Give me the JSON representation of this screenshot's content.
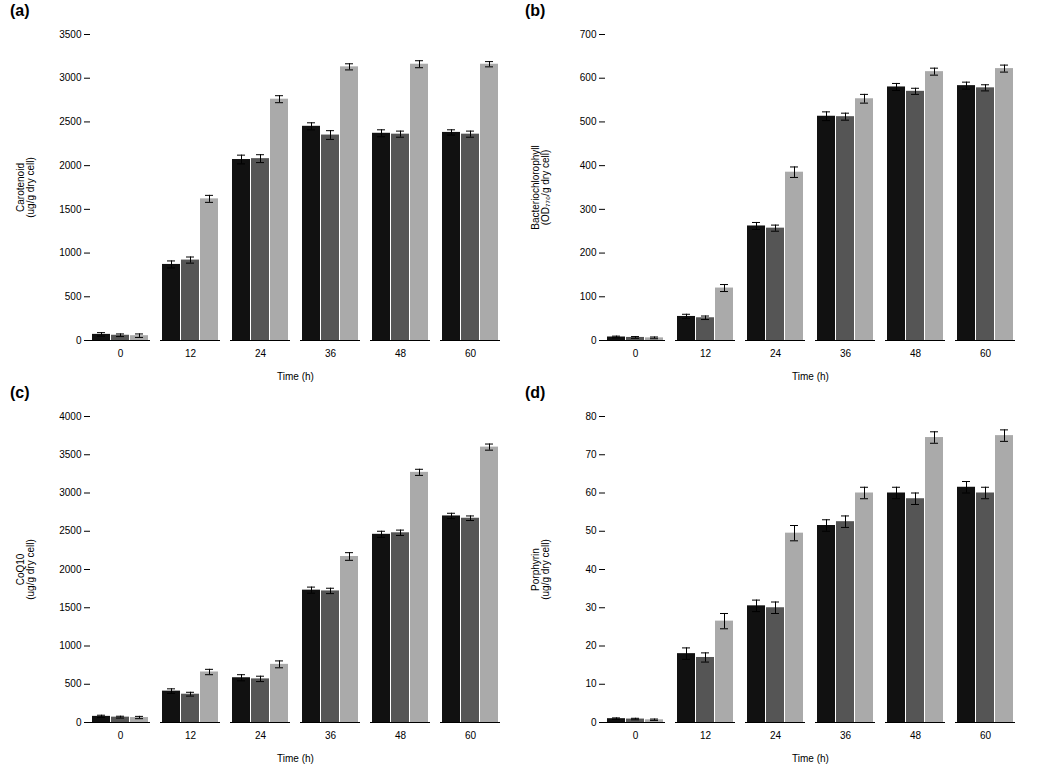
{
  "chart_data": [
    {
      "type": "bar",
      "title": "(a)",
      "xlabel": "Time (h)",
      "ylabel": "Carotenoid\n(ug/g dry cell)",
      "categories": [
        "0",
        "12",
        "24",
        "36",
        "48",
        "60"
      ],
      "ylim": [
        0,
        3500
      ],
      "yticks": [
        0,
        500,
        1000,
        1500,
        2000,
        2500,
        3000,
        3500
      ],
      "grid": false,
      "series": [
        {
          "color": "#111111",
          "values": [
            70,
            870,
            2070,
            2450,
            2370,
            2380
          ],
          "errors": [
            20,
            40,
            50,
            40,
            40,
            30
          ]
        },
        {
          "color": "#555555",
          "values": [
            60,
            920,
            2080,
            2350,
            2360,
            2360
          ],
          "errors": [
            15,
            35,
            45,
            50,
            35,
            35
          ]
        },
        {
          "color": "#aaaaaa",
          "values": [
            55,
            1620,
            2760,
            3130,
            3160,
            3160
          ],
          "errors": [
            20,
            40,
            40,
            35,
            40,
            30
          ]
        }
      ]
    },
    {
      "type": "bar",
      "title": "(b)",
      "xlabel": "Time (h)",
      "ylabel": "Bacteriochlorophyll\n(OD₇₇₀/g dry cell)",
      "categories": [
        "0",
        "12",
        "24",
        "36",
        "48",
        "60"
      ],
      "ylim": [
        0,
        700
      ],
      "yticks": [
        0,
        100,
        200,
        300,
        400,
        500,
        600,
        700
      ],
      "grid": false,
      "series": [
        {
          "color": "#111111",
          "values": [
            8,
            55,
            262,
            513,
            580,
            583
          ],
          "errors": [
            2,
            5,
            8,
            10,
            8,
            8
          ]
        },
        {
          "color": "#555555",
          "values": [
            7,
            52,
            257,
            512,
            570,
            578
          ],
          "errors": [
            2,
            4,
            7,
            8,
            7,
            7
          ]
        },
        {
          "color": "#aaaaaa",
          "values": [
            6,
            120,
            385,
            553,
            615,
            622
          ],
          "errors": [
            2,
            8,
            12,
            10,
            8,
            8
          ]
        }
      ]
    },
    {
      "type": "bar",
      "title": "(c)",
      "xlabel": "Time (h)",
      "ylabel": "CoQ10\n(ug/g dry cell)",
      "categories": [
        "0",
        "12",
        "24",
        "36",
        "48",
        "60"
      ],
      "ylim": [
        0,
        4000
      ],
      "yticks": [
        0,
        500,
        1000,
        1500,
        2000,
        2500,
        3000,
        3500,
        4000
      ],
      "grid": false,
      "series": [
        {
          "color": "#111111",
          "values": [
            80,
            410,
            585,
            1730,
            2460,
            2700
          ],
          "errors": [
            15,
            30,
            40,
            40,
            40,
            35
          ]
        },
        {
          "color": "#555555",
          "values": [
            70,
            370,
            570,
            1720,
            2480,
            2670
          ],
          "errors": [
            12,
            25,
            35,
            35,
            35,
            30
          ]
        },
        {
          "color": "#aaaaaa",
          "values": [
            65,
            660,
            760,
            2170,
            3270,
            3600
          ],
          "errors": [
            15,
            35,
            45,
            50,
            40,
            40
          ]
        }
      ]
    },
    {
      "type": "bar",
      "title": "(d)",
      "xlabel": "Time (h)",
      "ylabel": "Porphyrin\n(ug/g dry cell)",
      "categories": [
        "0",
        "12",
        "24",
        "36",
        "48",
        "60"
      ],
      "ylim": [
        0,
        80
      ],
      "yticks": [
        0,
        10,
        20,
        30,
        40,
        50,
        60,
        70,
        80
      ],
      "grid": false,
      "series": [
        {
          "color": "#111111",
          "values": [
            1.0,
            18.0,
            30.5,
            51.5,
            60.0,
            61.5
          ],
          "errors": [
            0.2,
            1.5,
            1.5,
            1.5,
            1.5,
            1.5
          ]
        },
        {
          "color": "#555555",
          "values": [
            0.9,
            17.0,
            30.0,
            52.5,
            58.5,
            60.0
          ],
          "errors": [
            0.2,
            1.2,
            1.5,
            1.5,
            1.5,
            1.5
          ]
        },
        {
          "color": "#aaaaaa",
          "values": [
            0.7,
            26.5,
            49.5,
            60.0,
            74.5,
            75.0
          ],
          "errors": [
            0.2,
            2.0,
            2.0,
            1.5,
            1.5,
            1.5
          ]
        }
      ]
    }
  ]
}
